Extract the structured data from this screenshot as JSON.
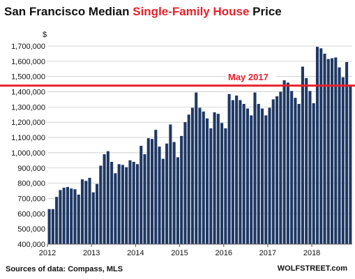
{
  "title": {
    "part1": "San Francisco Median ",
    "highlight": "Single-Family House",
    "part2": " Price"
  },
  "source": "Sources of data: Compass, MLS",
  "brand": "WOLFSTREET.com",
  "colors": {
    "bar": "#1f3864",
    "accent": "#e8202a",
    "text": "#111111",
    "gridline": "#c8c8c8"
  },
  "chart_data": {
    "type": "bar",
    "ylabel": "$",
    "ylim": [
      400000,
      1750000
    ],
    "yticks": [
      "400,000",
      "500,000",
      "600,000",
      "700,000",
      "800,000",
      "900,000",
      "1,000,000",
      "1,100,000",
      "1,200,000",
      "1,300,000",
      "1,400,000",
      "1,500,000",
      "1,600,000",
      "1,700,000"
    ],
    "xtick_labels": [
      "2012",
      "2013",
      "2014",
      "2015",
      "2016",
      "2017",
      "2018"
    ],
    "grid": "horizontal",
    "values": [
      630000,
      630000,
      710000,
      755000,
      770000,
      775000,
      765000,
      760000,
      725000,
      825000,
      815000,
      835000,
      740000,
      795000,
      915000,
      990000,
      1010000,
      940000,
      865000,
      925000,
      920000,
      905000,
      950000,
      940000,
      925000,
      1045000,
      990000,
      1095000,
      1090000,
      1150000,
      1040000,
      960000,
      1060000,
      1185000,
      1070000,
      970000,
      1110000,
      1200000,
      1250000,
      1295000,
      1395000,
      1295000,
      1270000,
      1225000,
      1160000,
      1265000,
      1255000,
      1195000,
      1160000,
      1385000,
      1345000,
      1375000,
      1345000,
      1320000,
      1290000,
      1245000,
      1395000,
      1320000,
      1290000,
      1245000,
      1295000,
      1350000,
      1370000,
      1400000,
      1475000,
      1460000,
      1405000,
      1360000,
      1320000,
      1565000,
      1490000,
      1405000,
      1325000,
      1695000,
      1685000,
      1650000,
      1615000,
      1620000,
      1625000,
      1560000,
      1495000,
      1595000,
      1440000
    ],
    "reference_line": {
      "label": "May 2017",
      "value": 1440000
    }
  }
}
